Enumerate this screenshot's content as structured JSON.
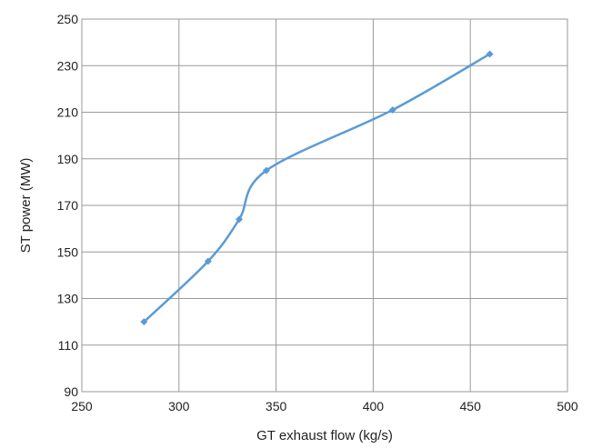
{
  "chart_data": {
    "type": "line",
    "title": "",
    "xlabel": "GT exhaust flow (kg/s)",
    "ylabel": "ST power (MW)",
    "xlim": [
      250,
      500
    ],
    "ylim": [
      90,
      250
    ],
    "xticks": [
      250,
      300,
      350,
      400,
      450,
      500
    ],
    "yticks": [
      90,
      110,
      130,
      150,
      170,
      190,
      210,
      230,
      250
    ],
    "grid": true,
    "legend": "none",
    "series": [
      {
        "color": "#5b9bd5",
        "marker": "diamond",
        "smooth": true,
        "x": [
          282,
          315,
          331,
          345,
          410,
          460
        ],
        "y": [
          120,
          146,
          164,
          185,
          211,
          235
        ]
      }
    ]
  }
}
